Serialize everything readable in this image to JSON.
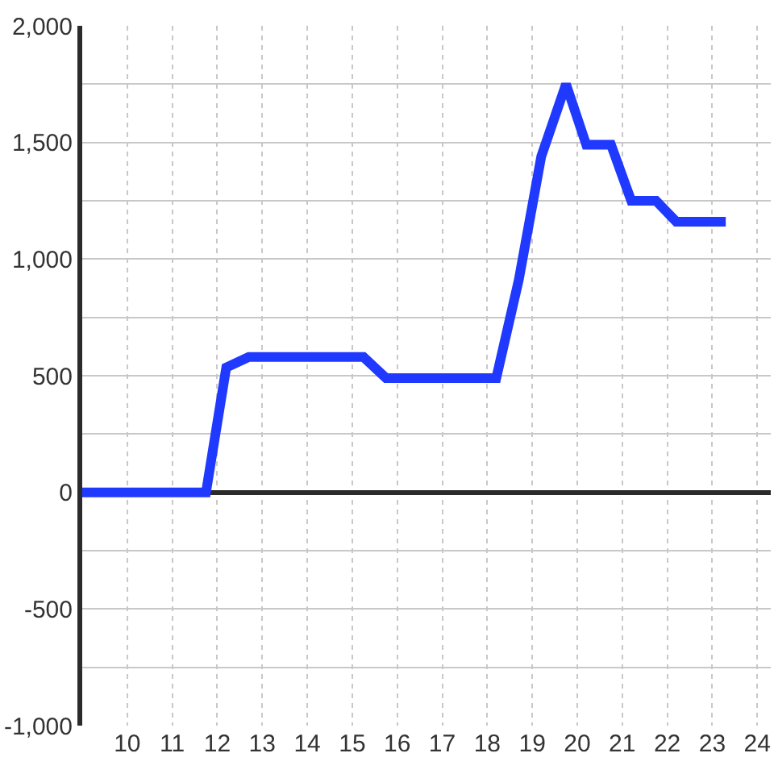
{
  "chart_data": {
    "type": "line",
    "x": [
      9,
      11.75,
      12.2,
      12.7,
      15.25,
      15.75,
      18.2,
      18.7,
      19.2,
      19.75,
      20.2,
      20.75,
      21.2,
      21.75,
      22.2,
      23.3
    ],
    "values": [
      0,
      0,
      535,
      580,
      580,
      490,
      490,
      910,
      1440,
      1750,
      1490,
      1490,
      1250,
      1250,
      1160,
      1160
    ],
    "color": "#2039ff",
    "marker": "none",
    "line_style": "solid",
    "xlim": [
      9,
      24.3
    ],
    "xticks": [
      10,
      11,
      12,
      13,
      14,
      15,
      16,
      17,
      18,
      19,
      20,
      21,
      22,
      23,
      24
    ],
    "ylim": [
      -1000,
      2000
    ],
    "yticks": [
      {
        "value": -1000,
        "label": "-1,000"
      },
      {
        "value": -750,
        "label": null
      },
      -500,
      {
        "value": -250,
        "label": null
      },
      0,
      {
        "value": 250,
        "label": null
      },
      500,
      {
        "value": 750,
        "label": null
      },
      {
        "value": 1000,
        "label": "1,000"
      },
      {
        "value": 1250,
        "label": null
      },
      {
        "value": 1500,
        "label": "1,500"
      },
      {
        "value": 1750,
        "label": null
      },
      {
        "value": 2000,
        "label": "2,000"
      }
    ],
    "grid": true
  }
}
